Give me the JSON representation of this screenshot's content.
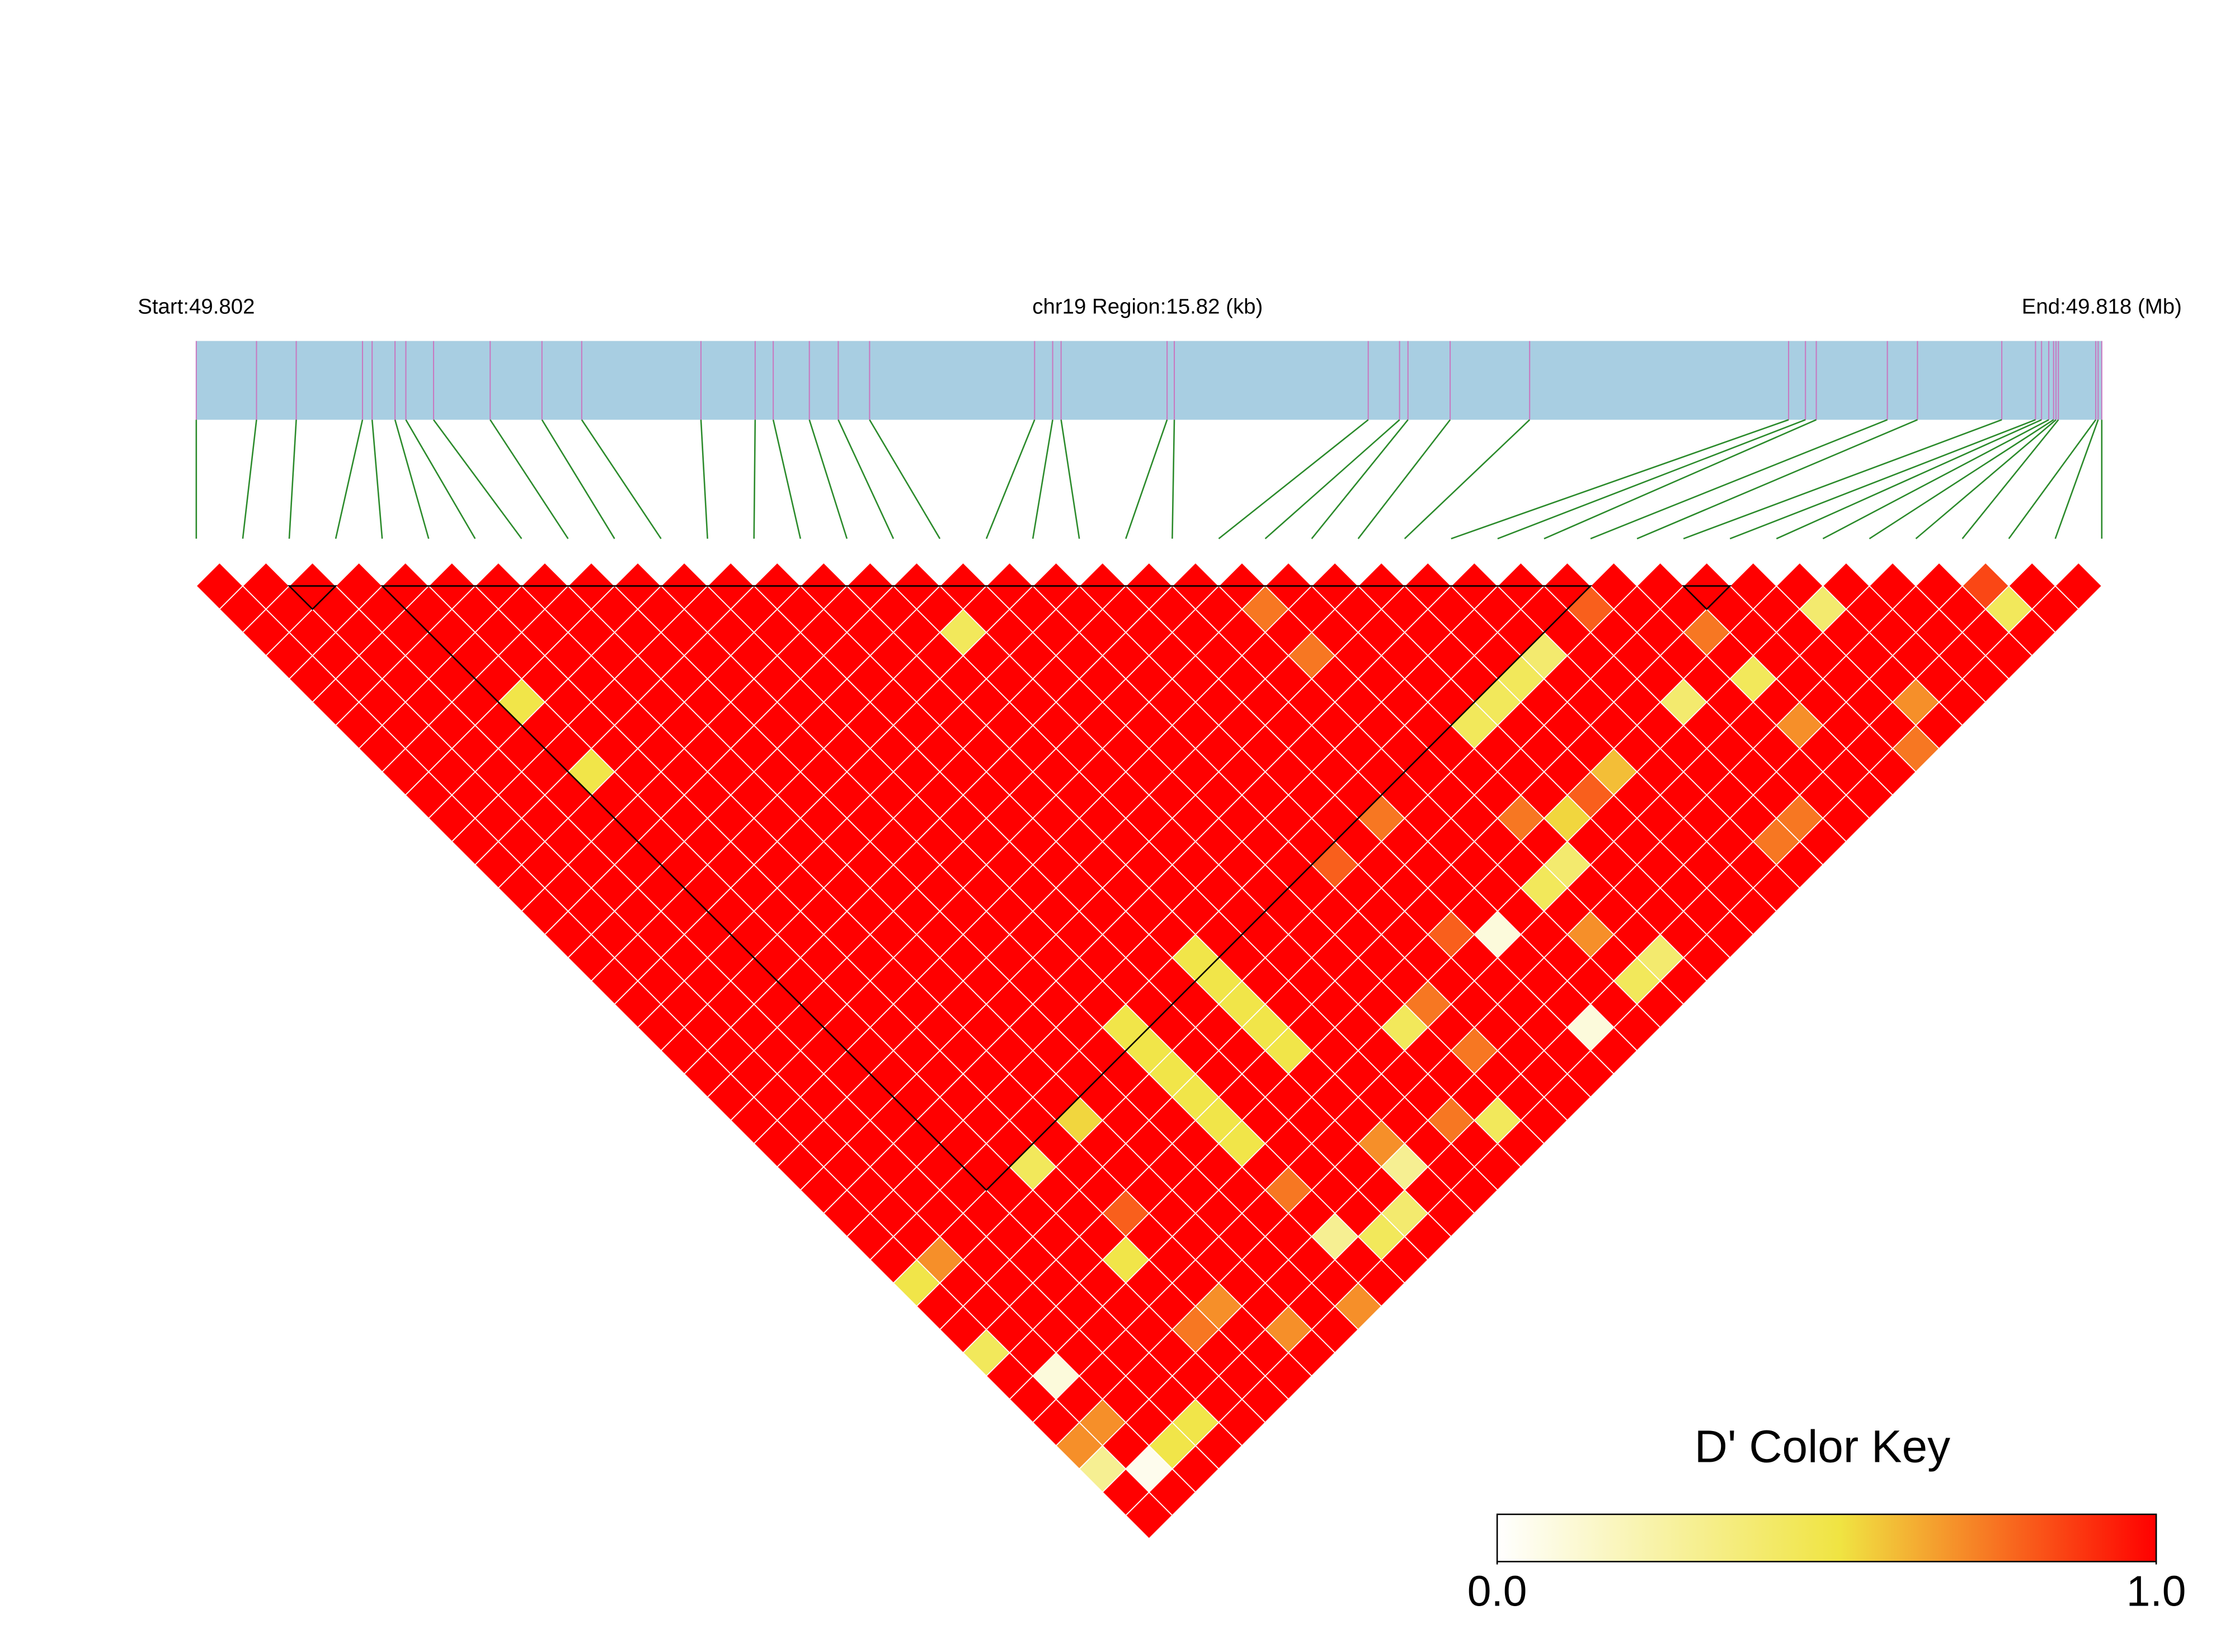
{
  "chart_data": {
    "type": "ld_heatmap",
    "start_label": "Start:49.802",
    "region_label": "chr19 Region:15.82 (kb)",
    "end_label": "End:49.818 (Mb)",
    "xlim": [
      0,
      15.82
    ],
    "snp_positions_kb": [
      0,
      0.5,
      0.83,
      1.38,
      1.46,
      1.65,
      1.74,
      1.97,
      2.44,
      2.87,
      3.2,
      4.19,
      4.64,
      4.79,
      5.09,
      5.33,
      5.59,
      6.96,
      7.11,
      7.18,
      8.06,
      8.12,
      9.73,
      9.99,
      10.06,
      10.41,
      11.07,
      13.22,
      13.36,
      13.45,
      14.04,
      14.29,
      14.99,
      15.27,
      15.32,
      15.38,
      15.42,
      15.44,
      15.46,
      15.77,
      15.79,
      15.82
    ],
    "bar_color": "#a8cee2",
    "snp_line_color": "#c878c0",
    "connector_color": "#2a8a2a",
    "blocks": [
      [
        2,
        3
      ],
      [
        4,
        30
      ],
      [
        32,
        33
      ]
    ],
    "matrix": [
      [
        1,
        1,
        1,
        1,
        1,
        1,
        1,
        1,
        1,
        1,
        1,
        1,
        1,
        1,
        1,
        1,
        1,
        1,
        1,
        1,
        1,
        1,
        1,
        1,
        1,
        1,
        1,
        1,
        1,
        1,
        1,
        1,
        1,
        1,
        1,
        1,
        1,
        1,
        0.85,
        1,
        1
      ],
      [
        1,
        1,
        1,
        1,
        1,
        1,
        1,
        1,
        1,
        1,
        1,
        1,
        1,
        1,
        1,
        1,
        1,
        1,
        1,
        1,
        1,
        1,
        0.75,
        1,
        1,
        1,
        1,
        1,
        1,
        0.8,
        1,
        1,
        1,
        1,
        0.4,
        1,
        1,
        1,
        0.45,
        1
      ],
      [
        1,
        1,
        1,
        1,
        1,
        1,
        1,
        1,
        1,
        1,
        1,
        1,
        1,
        1,
        1,
        0.45,
        1,
        1,
        1,
        1,
        1,
        1,
        1,
        1,
        1,
        1,
        1,
        1,
        1,
        1,
        1,
        0.75,
        1,
        1,
        1,
        1,
        1,
        1,
        1
      ],
      [
        1,
        1,
        1,
        1,
        1,
        1,
        1,
        1,
        1,
        1,
        1,
        1,
        1,
        1,
        1,
        1,
        1,
        1,
        1,
        1,
        1,
        1,
        0.75,
        1,
        1,
        1,
        1,
        0.4,
        1,
        1,
        1,
        1,
        1,
        1,
        1,
        1,
        1,
        1
      ],
      [
        1,
        1,
        1,
        1,
        1,
        1,
        1,
        1,
        1,
        1,
        1,
        1,
        1,
        1,
        1,
        1,
        1,
        1,
        1,
        1,
        1,
        1,
        1,
        1,
        1,
        1,
        0.45,
        1,
        1,
        1,
        1,
        0.45,
        1,
        1,
        1,
        1,
        1
      ],
      [
        1,
        1,
        1,
        1,
        0.5,
        1,
        1,
        1,
        1,
        1,
        1,
        1,
        1,
        1,
        1,
        1,
        1,
        1,
        1,
        1,
        1,
        1,
        1,
        1,
        1,
        0.45,
        1,
        1,
        1,
        0.4,
        1,
        1,
        1,
        1,
        0.7,
        1
      ],
      [
        1,
        1,
        1,
        1,
        1,
        1,
        1,
        1,
        1,
        1,
        1,
        1,
        1,
        1,
        1,
        1,
        1,
        1,
        1,
        1,
        1,
        1,
        1,
        1,
        0.45,
        1,
        1,
        1,
        1,
        1,
        1,
        0.7,
        1,
        1,
        1
      ],
      [
        1,
        1,
        1,
        1,
        1,
        1,
        1,
        1,
        1,
        1,
        1,
        1,
        1,
        1,
        1,
        1,
        1,
        1,
        1,
        1,
        1,
        1,
        1,
        1,
        1,
        1,
        1,
        1,
        1,
        1,
        1,
        1,
        1,
        0.75
      ],
      [
        1,
        1,
        1,
        1,
        0.5,
        1,
        1,
        1,
        1,
        1,
        1,
        1,
        1,
        1,
        1,
        1,
        1,
        1,
        1,
        1,
        1,
        1,
        1,
        1,
        1,
        1,
        0.6,
        1,
        1,
        1,
        1,
        1,
        1
      ],
      [
        1,
        1,
        1,
        1,
        1,
        1,
        1,
        1,
        1,
        1,
        1,
        1,
        1,
        1,
        1,
        1,
        1,
        1,
        1,
        1,
        1,
        1,
        1,
        1,
        1,
        0.8,
        1,
        1,
        1,
        1,
        1,
        1
      ],
      [
        1,
        1,
        1,
        1,
        1,
        1,
        1,
        1,
        1,
        1,
        1,
        1,
        1,
        1,
        1,
        1,
        1,
        1,
        1,
        1,
        0.75,
        1,
        1,
        0.75,
        0.55,
        1,
        1,
        1,
        1,
        0.75,
        1
      ],
      [
        1,
        1,
        1,
        1,
        1,
        1,
        1,
        1,
        1,
        1,
        1,
        1,
        1,
        1,
        1,
        1,
        1,
        1,
        1,
        1,
        1,
        1,
        1,
        1,
        1,
        1,
        1,
        1,
        0.75,
        1
      ],
      [
        1,
        1,
        1,
        1,
        1,
        1,
        1,
        1,
        1,
        1,
        1,
        1,
        1,
        1,
        1,
        1,
        1,
        1,
        0.8,
        1,
        1,
        1,
        1,
        0.4,
        1,
        1,
        1,
        1,
        1
      ],
      [
        1,
        1,
        1,
        1,
        1,
        1,
        1,
        1,
        1,
        1,
        1,
        1,
        1,
        1,
        1,
        1,
        1,
        1,
        1,
        1,
        1,
        1,
        0.45,
        1,
        1,
        1,
        1,
        1
      ],
      [
        1,
        1,
        1,
        1,
        1,
        1,
        1,
        1,
        1,
        1,
        1,
        1,
        1,
        1,
        1,
        1,
        1,
        1,
        1,
        1,
        1,
        1,
        1,
        1,
        1,
        1,
        1
      ],
      [
        1,
        1,
        1,
        1,
        1,
        1,
        1,
        1,
        1,
        1,
        1,
        1,
        1,
        1,
        1,
        1,
        1,
        1,
        1,
        0.8,
        0.1,
        1,
        0.7,
        1,
        1,
        1
      ],
      [
        1,
        1,
        1,
        1,
        1,
        1,
        1,
        1,
        1,
        1,
        1,
        1,
        1,
        0.5,
        1,
        1,
        1,
        1,
        1,
        1,
        1,
        1,
        1,
        0.4,
        1
      ],
      [
        1,
        1,
        1,
        1,
        1,
        1,
        1,
        1,
        1,
        1,
        1,
        1,
        1,
        0.5,
        1,
        1,
        1,
        1,
        1,
        1,
        1,
        1,
        0.45,
        1
      ],
      [
        1,
        1,
        1,
        1,
        1,
        1,
        1,
        1,
        1,
        1,
        1,
        1,
        1,
        0.5,
        1,
        1,
        1,
        0.75,
        1,
        1,
        1,
        1,
        1
      ],
      [
        1,
        1,
        1,
        1,
        1,
        1,
        1,
        1,
        1,
        1,
        0.5,
        1,
        1,
        0.5,
        1,
        1,
        0.45,
        1,
        1,
        1,
        0.1,
        1
      ],
      [
        1,
        1,
        1,
        1,
        1,
        1,
        1,
        1,
        1,
        1,
        0.5,
        1,
        1,
        0.5,
        1,
        1,
        1,
        0.75,
        1,
        1,
        1
      ],
      [
        1,
        1,
        1,
        1,
        1,
        1,
        1,
        1,
        1,
        1,
        0.5,
        1,
        1,
        1,
        1,
        1,
        1,
        1,
        1,
        1
      ],
      [
        1,
        1,
        1,
        1,
        1,
        1,
        1,
        1,
        1,
        1,
        0.5,
        1,
        1,
        1,
        1,
        1,
        1,
        1,
        1
      ],
      [
        1,
        1,
        1,
        1,
        1,
        1,
        1,
        0.55,
        1,
        1,
        0.5,
        1,
        1,
        1,
        1,
        0.75,
        0.45,
        1
      ],
      [
        1,
        1,
        1,
        1,
        1,
        1,
        1,
        1,
        1,
        1,
        0.5,
        1,
        1,
        0.7,
        1,
        1,
        1
      ],
      [
        1,
        1,
        1,
        1,
        1,
        0.45,
        1,
        1,
        1,
        1,
        1,
        1,
        1,
        0.3,
        1,
        1
      ],
      [
        1,
        1,
        1,
        1,
        1,
        1,
        1,
        1,
        1,
        1,
        0.75,
        1,
        1,
        1,
        1
      ],
      [
        1,
        1,
        1,
        1,
        1,
        1,
        0.8,
        1,
        1,
        1,
        1,
        1,
        0.4,
        1
      ],
      [
        1,
        1,
        1,
        1,
        1,
        1,
        1,
        1,
        1,
        1,
        0.3,
        0.45,
        1
      ],
      [
        1,
        0.7,
        1,
        1,
        1,
        0.5,
        1,
        1,
        1,
        1,
        1,
        1
      ],
      [
        0.5,
        1,
        1,
        1,
        1,
        1,
        1,
        1,
        1,
        1,
        1
      ],
      [
        1,
        1,
        1,
        1,
        1,
        1,
        0.7,
        1,
        1,
        0.7
      ],
      [
        1,
        1,
        1,
        1,
        1,
        0.75,
        1,
        0.7,
        1
      ],
      [
        0.45,
        1,
        1,
        1,
        1,
        1,
        1,
        1
      ],
      [
        1,
        0.1,
        1,
        1,
        1,
        1,
        1
      ],
      [
        1,
        1,
        1,
        1,
        1,
        1
      ],
      [
        1,
        0.7,
        1,
        0.5,
        1
      ],
      [
        0.7,
        1,
        0.5,
        1
      ],
      [
        0.3,
        0.05,
        1
      ],
      [
        1,
        1
      ],
      [
        1
      ]
    ],
    "colormap": [
      {
        "value": 0,
        "color": "#ffffff"
      },
      {
        "value": 0.52,
        "color": "#f0e442"
      },
      {
        "value": 1,
        "color": "#ff0000"
      }
    ],
    "key_title": "D' Color Key",
    "key_ticks": [
      {
        "value": 0,
        "label": "0.0"
      },
      {
        "value": 1,
        "label": "1.0"
      }
    ]
  }
}
